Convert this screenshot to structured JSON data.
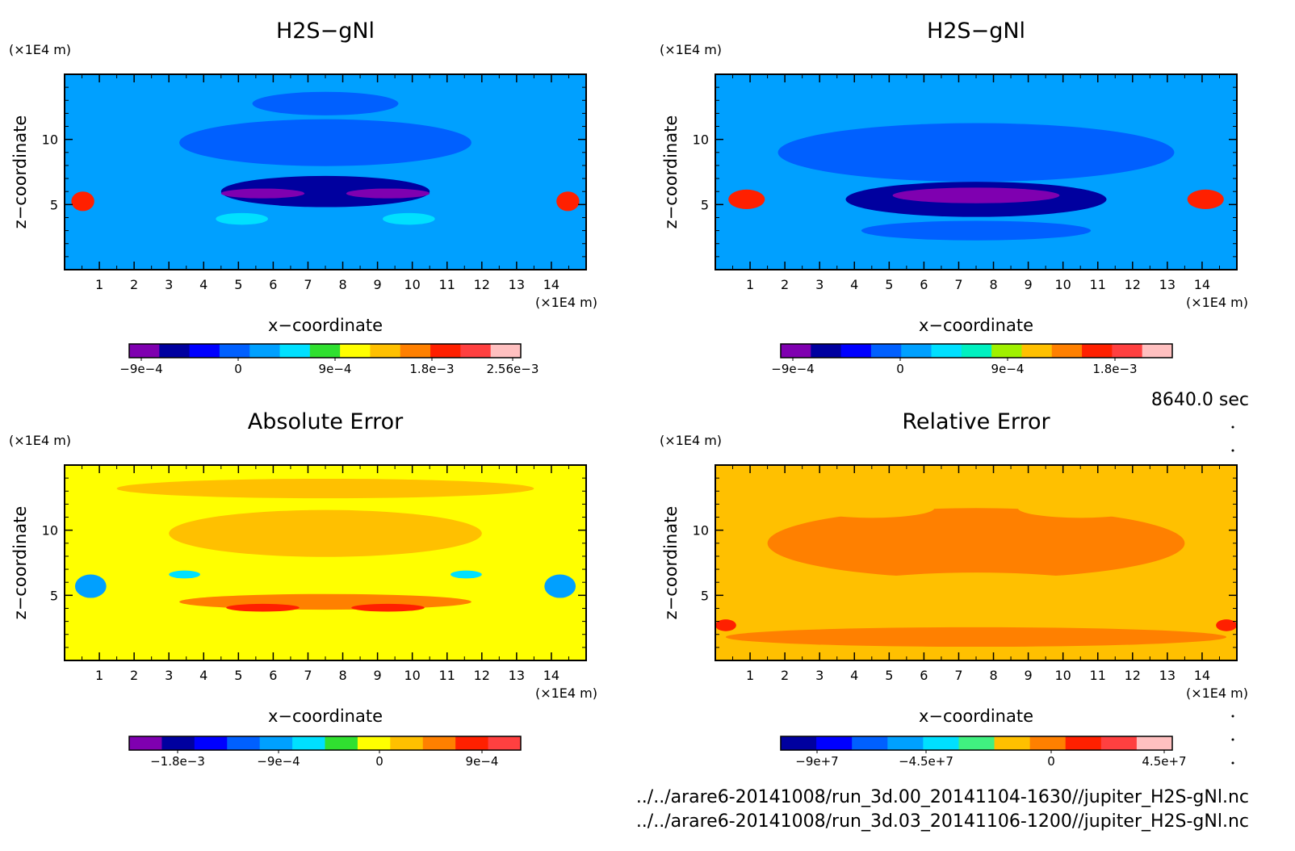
{
  "time_label": "8640.0 sec",
  "footer": {
    "files": [
      "../../arare6-20141008/run_3d.00_20141104-1630//jupiter_H2S-gNl.nc",
      "../../arare6-20141008/run_3d.03_20141106-1200//jupiter_H2S-gNl.nc"
    ]
  },
  "chart_data": [
    {
      "type": "heatmap",
      "title": "H2S−gNl",
      "xlabel": "x−coordinate",
      "ylabel": "z−coordinate",
      "x_unit": "(×1E4 m)",
      "y_unit": "(×1E4 m)",
      "xlim": [
        0,
        15
      ],
      "ylim": [
        0,
        15
      ],
      "x_ticks": [
        "1",
        "2",
        "3",
        "4",
        "5",
        "6",
        "7",
        "8",
        "9",
        "10",
        "11",
        "12",
        "13",
        "14"
      ],
      "y_ticks": [
        "5",
        "10"
      ],
      "colorbar": {
        "colors": [
          "#7f00b0",
          "#00009f",
          "#0000ff",
          "#0060ff",
          "#00a0ff",
          "#00e0ff",
          "#30e030",
          "#ffff00",
          "#ffc000",
          "#ff8000",
          "#ff2000",
          "#ff4040",
          "#ffc0c0"
        ],
        "labels": [
          "−9e−4",
          "0",
          "9e−4",
          "1.8e−3",
          "2.56e−3"
        ]
      }
    },
    {
      "type": "heatmap",
      "title": "H2S−gNl",
      "xlabel": "x−coordinate",
      "ylabel": "z−coordinate",
      "x_unit": "(×1E4 m)",
      "y_unit": "(×1E4 m)",
      "xlim": [
        0,
        15
      ],
      "ylim": [
        0,
        15
      ],
      "x_ticks": [
        "1",
        "2",
        "3",
        "4",
        "5",
        "6",
        "7",
        "8",
        "9",
        "10",
        "11",
        "12",
        "13",
        "14"
      ],
      "y_ticks": [
        "5",
        "10"
      ],
      "colorbar": {
        "colors": [
          "#7f00b0",
          "#00009f",
          "#0000ff",
          "#0060ff",
          "#00a0ff",
          "#00e0ff",
          "#00f0c0",
          "#a0f000",
          "#ffc000",
          "#ff8000",
          "#ff2000",
          "#ff4040",
          "#ffc0c0"
        ],
        "labels": [
          "−9e−4",
          "0",
          "9e−4",
          "1.8e−3"
        ]
      }
    },
    {
      "type": "heatmap",
      "title": "Absolute Error",
      "xlabel": "x−coordinate",
      "ylabel": "z−coordinate",
      "x_unit": "(×1E4 m)",
      "y_unit": "(×1E4 m)",
      "xlim": [
        0,
        15
      ],
      "ylim": [
        0,
        15
      ],
      "x_ticks": [
        "1",
        "2",
        "3",
        "4",
        "5",
        "6",
        "7",
        "8",
        "9",
        "10",
        "11",
        "12",
        "13",
        "14"
      ],
      "y_ticks": [
        "5",
        "10"
      ],
      "colorbar": {
        "colors": [
          "#7f00b0",
          "#00009f",
          "#0000ff",
          "#0060ff",
          "#00a0ff",
          "#00e0ff",
          "#30e030",
          "#ffff00",
          "#ffc000",
          "#ff8000",
          "#ff2000",
          "#ff4040"
        ],
        "labels": [
          "−1.8e−3",
          "−9e−4",
          "0",
          "9e−4"
        ]
      }
    },
    {
      "type": "heatmap",
      "title": "Relative Error",
      "xlabel": "x−coordinate",
      "ylabel": "z−coordinate",
      "x_unit": "(×1E4 m)",
      "y_unit": "(×1E4 m)",
      "xlim": [
        0,
        15
      ],
      "ylim": [
        0,
        15
      ],
      "x_ticks": [
        "1",
        "2",
        "3",
        "4",
        "5",
        "6",
        "7",
        "8",
        "9",
        "10",
        "11",
        "12",
        "13",
        "14"
      ],
      "y_ticks": [
        "5",
        "10"
      ],
      "colorbar": {
        "colors": [
          "#00009f",
          "#0000ff",
          "#0060ff",
          "#00a0ff",
          "#00e0ff",
          "#40f080",
          "#ffc000",
          "#ff8000",
          "#ff2000",
          "#ff4040",
          "#ffc0c0"
        ],
        "labels": [
          "−9e+7",
          "−4.5e+7",
          "0",
          "4.5e+7"
        ]
      }
    }
  ]
}
